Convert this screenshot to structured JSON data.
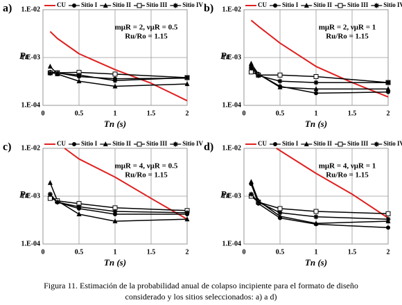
{
  "chart_data": [
    {
      "type": "line",
      "panel_label": "a)",
      "log_y": true,
      "grid": true,
      "legend": "top",
      "annotation": [
        "mμR = 2, νμR = 0.5",
        "Ru/Ro = 1.15"
      ],
      "x_label": "Tn (s)",
      "y_label": "Pc",
      "xlim": [
        0,
        2
      ],
      "xticks": [
        0,
        0.5,
        1,
        1.5,
        2
      ],
      "ylim": [
        0.0001,
        0.01
      ],
      "yticks": [
        {
          "value": 0.0001,
          "label": "1.E-04"
        },
        {
          "value": 0.001,
          "label": "1.E-03"
        },
        {
          "value": 0.01,
          "label": "1.E-02"
        }
      ],
      "series": [
        {
          "name": "CU",
          "color": "#e02020",
          "marker": "none",
          "x": [
            0.1,
            0.2,
            0.5,
            1,
            1.5,
            2
          ],
          "values": [
            0.0035,
            0.0025,
            0.0012,
            0.00056,
            0.00029,
            0.000125
          ]
        },
        {
          "name": "Sitio I",
          "color": "#000000",
          "marker": "circle",
          "x": [
            0.1,
            0.2,
            0.5,
            1,
            2
          ],
          "values": [
            0.0005,
            0.00048,
            0.0004,
            0.00036,
            0.00037
          ]
        },
        {
          "name": "Sitio II",
          "color": "#000000",
          "marker": "triangle",
          "x": [
            0.1,
            0.2,
            0.5,
            1,
            2
          ],
          "values": [
            0.00065,
            0.00045,
            0.00032,
            0.00025,
            0.00028
          ]
        },
        {
          "name": "Sitio III",
          "color": "#000000",
          "marker": "square",
          "x": [
            0.1,
            0.2,
            0.5,
            1,
            2
          ],
          "values": [
            0.00048,
            0.00048,
            0.00049,
            0.00045,
            0.00038
          ]
        },
        {
          "name": "Sitio IV",
          "color": "#000000",
          "marker": "star",
          "x": [
            0.1,
            0.2,
            0.5,
            1,
            2
          ],
          "values": [
            0.00047,
            0.00047,
            0.00043,
            0.00033,
            0.00038
          ]
        }
      ]
    },
    {
      "type": "line",
      "panel_label": "b)",
      "log_y": true,
      "grid": true,
      "legend": "top",
      "annotation": [
        "mμR = 2, νμR = 1",
        "Ru/Ro = 1.15"
      ],
      "x_label": "Tn (s)",
      "y_label": "Pc",
      "xlim": [
        0,
        2
      ],
      "xticks": [
        0,
        0.5,
        1,
        1.5,
        2
      ],
      "ylim": [
        0.0001,
        0.01
      ],
      "yticks": [
        {
          "value": 0.0001,
          "label": "1.E-04"
        },
        {
          "value": 0.001,
          "label": "1.E-03"
        },
        {
          "value": 0.01,
          "label": "1.E-02"
        }
      ],
      "series": [
        {
          "name": "CU",
          "color": "#e02020",
          "marker": "none",
          "x": [
            0.1,
            0.2,
            0.5,
            1,
            1.5,
            2
          ],
          "values": [
            0.006,
            0.0045,
            0.002,
            0.00065,
            0.0003,
            0.00015
          ]
        },
        {
          "name": "Sitio I",
          "color": "#000000",
          "marker": "circle",
          "x": [
            0.1,
            0.2,
            0.5,
            1,
            2
          ],
          "values": [
            0.00065,
            0.00045,
            0.00025,
            0.00018,
            0.00019
          ]
        },
        {
          "name": "Sitio II",
          "color": "#000000",
          "marker": "triangle",
          "x": [
            0.1,
            0.2,
            0.5,
            1,
            2
          ],
          "values": [
            0.00075,
            0.00045,
            0.00024,
            0.00022,
            0.00022
          ]
        },
        {
          "name": "Sitio III",
          "color": "#000000",
          "marker": "square",
          "x": [
            0.1,
            0.2,
            0.5,
            1,
            2
          ],
          "values": [
            0.0005,
            0.00043,
            0.00043,
            0.0004,
            0.0003
          ]
        },
        {
          "name": "Sitio IV",
          "color": "#000000",
          "marker": "star",
          "x": [
            0.1,
            0.2,
            0.5,
            1,
            2
          ],
          "values": [
            0.0006,
            0.00042,
            0.00032,
            0.0003,
            0.0003
          ]
        }
      ]
    },
    {
      "type": "line",
      "panel_label": "c)",
      "log_y": true,
      "grid": true,
      "legend": "top",
      "annotation": [
        "mμR = 4, νμR = 0.5",
        "Ru/Ro = 1.15"
      ],
      "x_label": "Tn (s)",
      "y_label": "Pc",
      "xlim": [
        0,
        2
      ],
      "xticks": [
        0,
        0.5,
        1,
        1.5,
        2
      ],
      "ylim": [
        0.0001,
        0.01
      ],
      "yticks": [
        {
          "value": 0.0001,
          "label": "1.E-04"
        },
        {
          "value": 0.001,
          "label": "1.E-03"
        },
        {
          "value": 0.01,
          "label": "1.E-02"
        }
      ],
      "series": [
        {
          "name": "CU",
          "color": "#e02020",
          "marker": "none",
          "x": [
            0.3,
            0.5,
            1,
            1.5,
            2
          ],
          "values": [
            0.01,
            0.006,
            0.0025,
            0.0009,
            0.00033
          ]
        },
        {
          "name": "Sitio I",
          "color": "#000000",
          "marker": "circle",
          "x": [
            0.1,
            0.2,
            0.5,
            1,
            2
          ],
          "values": [
            0.001,
            0.00075,
            0.00055,
            0.00042,
            0.00042
          ]
        },
        {
          "name": "Sitio II",
          "color": "#000000",
          "marker": "triangle",
          "x": [
            0.1,
            0.2,
            0.5,
            1,
            2
          ],
          "values": [
            0.0019,
            0.0008,
            0.00042,
            0.0003,
            0.00033
          ]
        },
        {
          "name": "Sitio III",
          "color": "#000000",
          "marker": "square",
          "x": [
            0.1,
            0.2,
            0.5,
            1,
            2
          ],
          "values": [
            0.0009,
            0.0008,
            0.0007,
            0.00057,
            0.0005
          ]
        },
        {
          "name": "Sitio IV",
          "color": "#000000",
          "marker": "star",
          "x": [
            0.1,
            0.2,
            0.5,
            1,
            2
          ],
          "values": [
            0.0011,
            0.00075,
            0.0006,
            0.00048,
            0.00045
          ]
        }
      ]
    },
    {
      "type": "line",
      "panel_label": "d)",
      "log_y": true,
      "grid": true,
      "legend": "top",
      "annotation": [
        "mμR = 4, νμR = 1",
        "Ru/Ro = 1.15"
      ],
      "x_label": "Tn (s)",
      "y_label": "Pc",
      "xlim": [
        0,
        2
      ],
      "xticks": [
        0,
        0.5,
        1,
        1.5,
        2
      ],
      "ylim": [
        0.0001,
        0.01
      ],
      "yticks": [
        {
          "value": 0.0001,
          "label": "1.E-04"
        },
        {
          "value": 0.001,
          "label": "1.E-03"
        },
        {
          "value": 0.01,
          "label": "1.E-02"
        }
      ],
      "series": [
        {
          "name": "CU",
          "color": "#e02020",
          "marker": "none",
          "x": [
            0.45,
            1,
            1.5,
            2
          ],
          "values": [
            0.01,
            0.003,
            0.0011,
            0.00035
          ]
        },
        {
          "name": "Sitio I",
          "color": "#000000",
          "marker": "circle",
          "x": [
            0.1,
            0.2,
            0.5,
            1,
            2
          ],
          "values": [
            0.0018,
            0.0007,
            0.00035,
            0.00026,
            0.00022
          ]
        },
        {
          "name": "Sitio II",
          "color": "#000000",
          "marker": "triangle",
          "x": [
            0.1,
            0.2,
            0.5,
            1,
            2
          ],
          "values": [
            0.002,
            0.0008,
            0.00038,
            0.00027,
            0.0003
          ]
        },
        {
          "name": "Sitio III",
          "color": "#000000",
          "marker": "square",
          "x": [
            0.1,
            0.2,
            0.5,
            1,
            2
          ],
          "values": [
            0.001,
            0.00075,
            0.00055,
            0.00048,
            0.00043
          ]
        },
        {
          "name": "Sitio IV",
          "color": "#000000",
          "marker": "star",
          "x": [
            0.1,
            0.2,
            0.5,
            1,
            2
          ],
          "values": [
            0.0011,
            0.00075,
            0.00045,
            0.00037,
            0.00033
          ]
        }
      ]
    }
  ],
  "caption": [
    "Figura 11.  Estimación de la probabilidad anual de colapso incipiente para el formato de diseño",
    "considerado y los sitios seleccionados: a) a d)"
  ]
}
